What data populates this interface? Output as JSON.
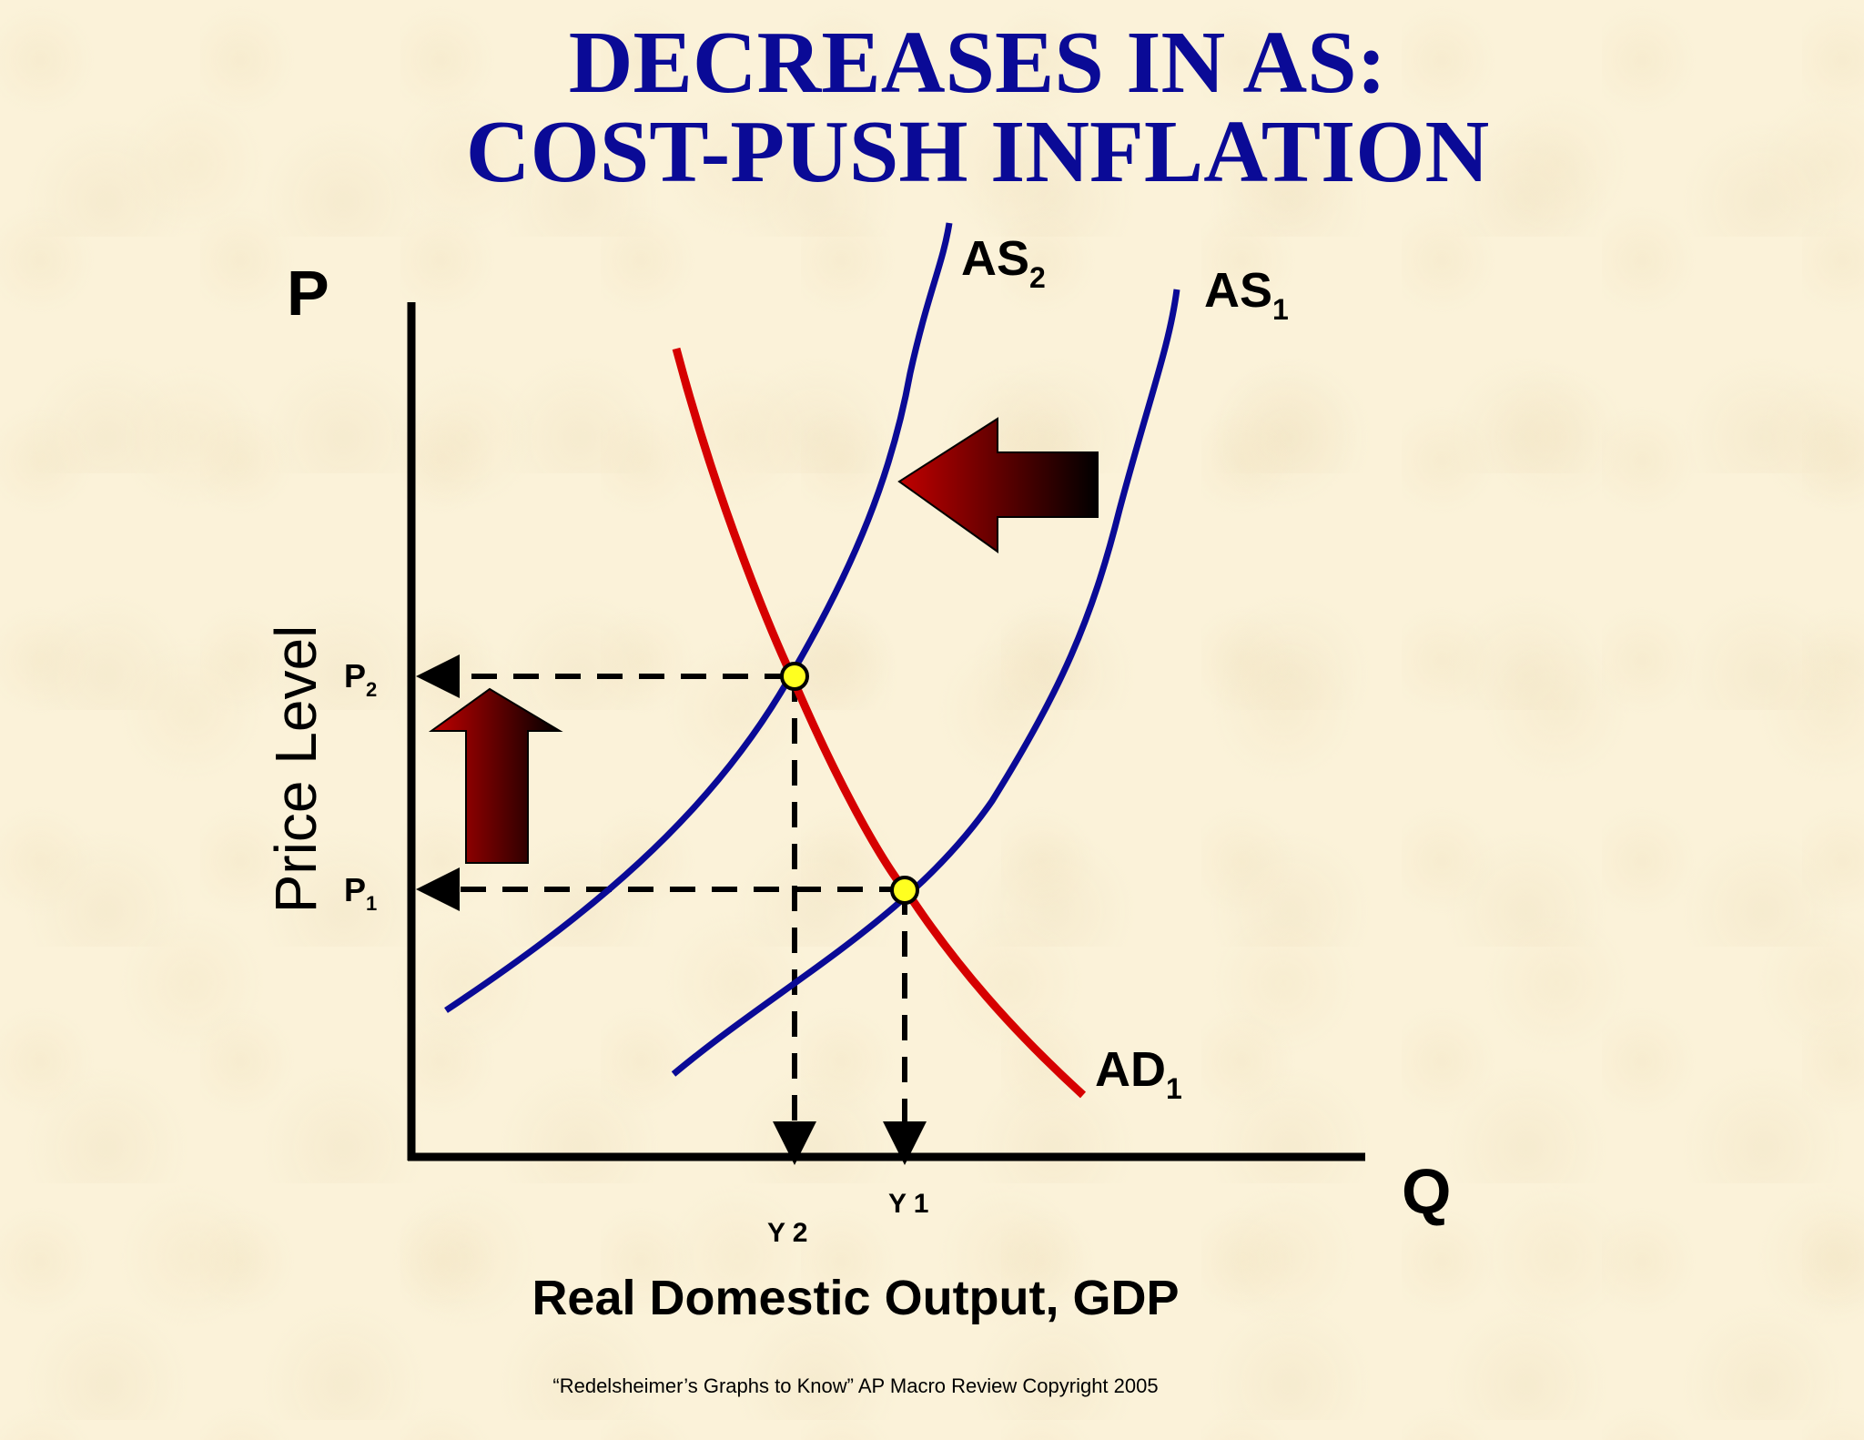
{
  "title": {
    "line1": "DECREASES IN AS:",
    "line2": "COST-PUSH INFLATION"
  },
  "axes": {
    "y_axis_letter": "P",
    "x_axis_letter": "Q",
    "y_label": "Price Level",
    "x_label": "Real Domestic Output, GDP"
  },
  "price_levels": {
    "p1": {
      "main": "P",
      "sub": "1"
    },
    "p2": {
      "main": "P",
      "sub": "2"
    }
  },
  "output_levels": {
    "y1": "Y 1",
    "y2": "Y 2"
  },
  "curves": {
    "as1": {
      "main": "AS",
      "sub": "1",
      "color": "#0a0a96"
    },
    "as2": {
      "main": "AS",
      "sub": "2",
      "color": "#0a0a96"
    },
    "ad1": {
      "main": "AD",
      "sub": "1",
      "color": "#d60000"
    }
  },
  "equilibrium_color": "#ffff20",
  "shift_arrow_color": "#a00000",
  "footer": "“Redelsheimer’s Graphs to Know”  AP Macro Review Copyright 2005"
}
